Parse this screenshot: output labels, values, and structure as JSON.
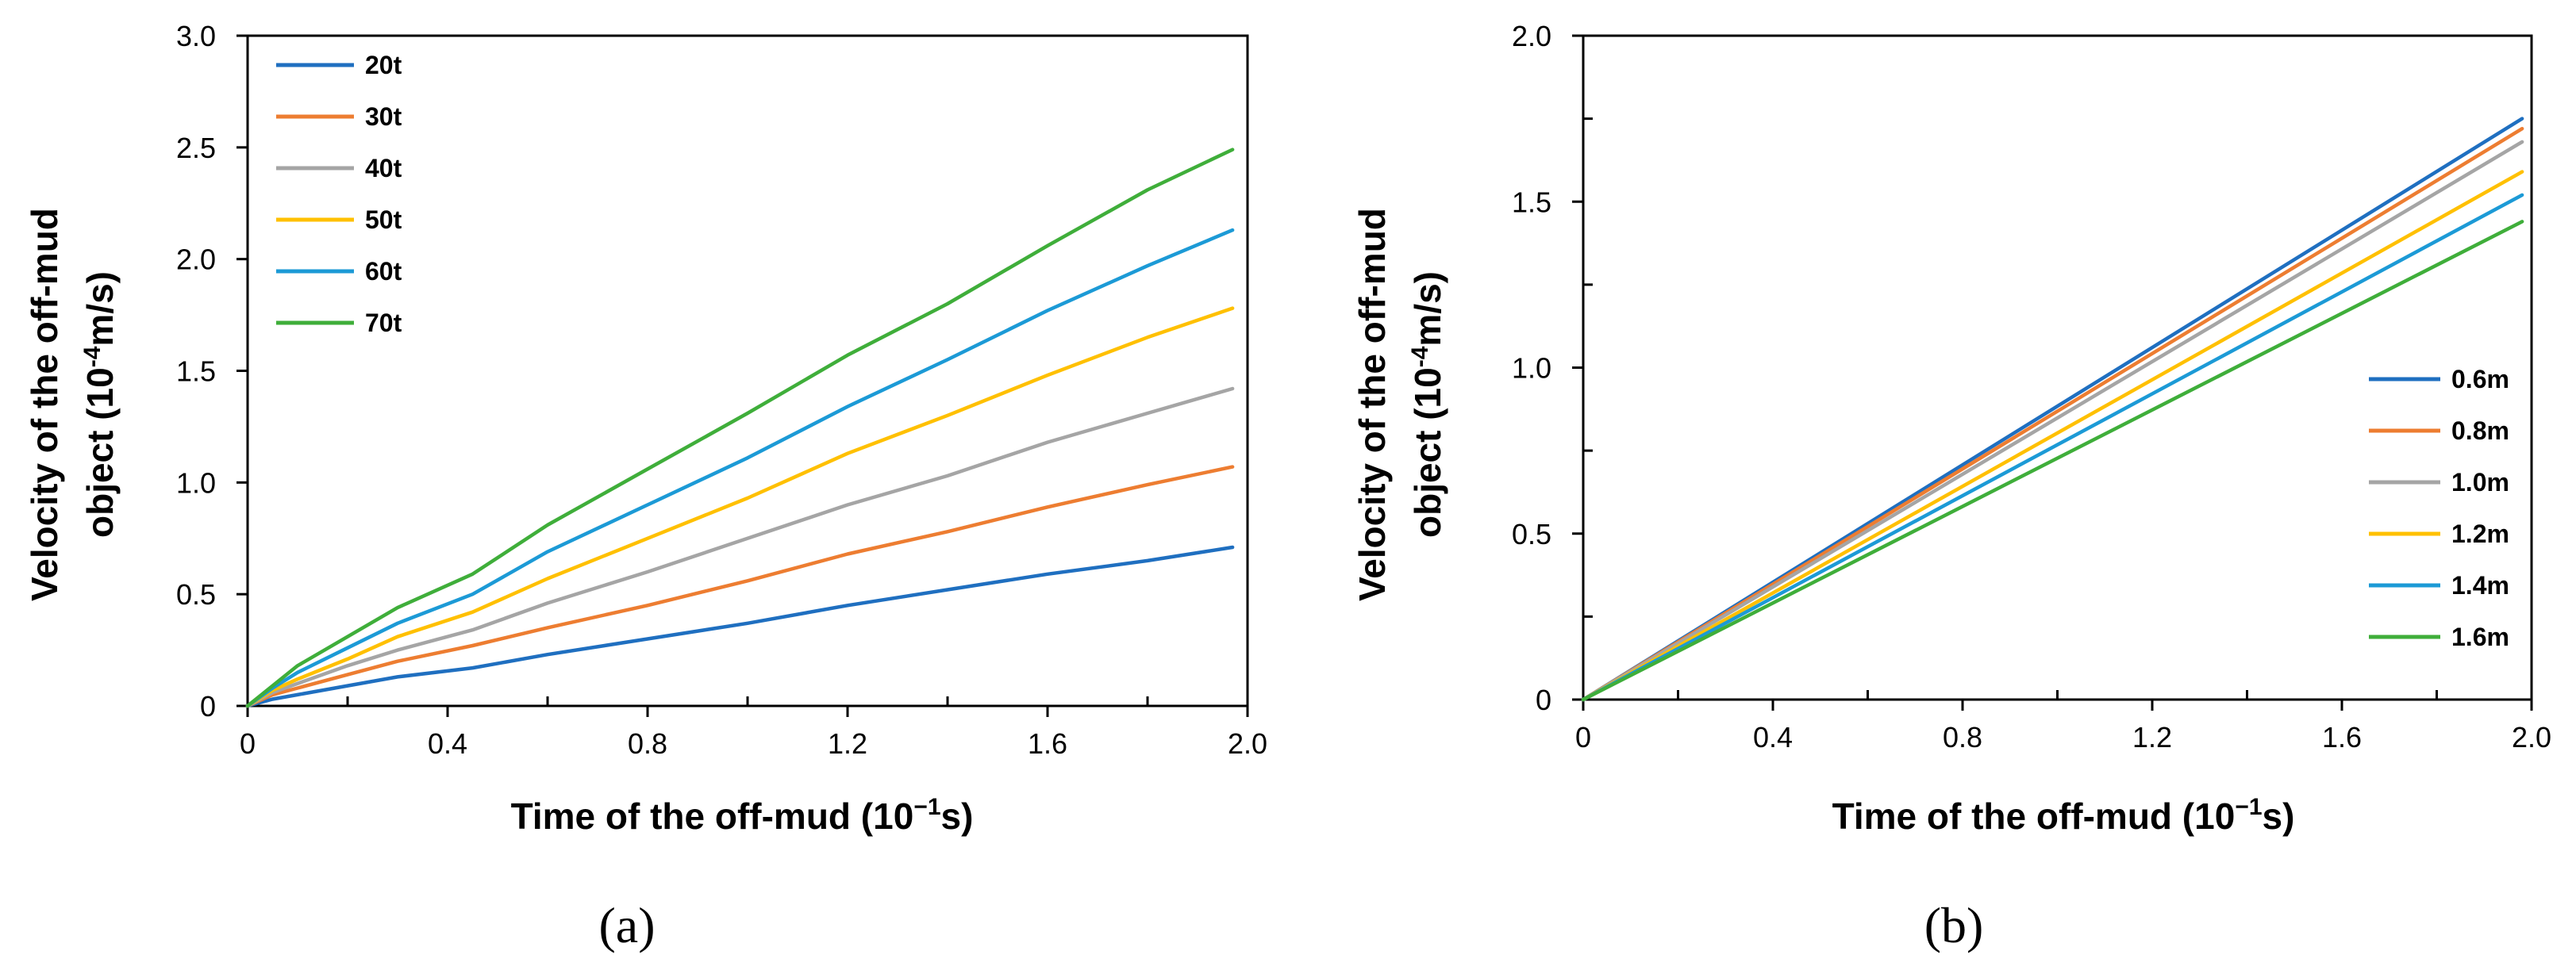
{
  "chart_data": [
    {
      "type": "line",
      "panel_label_parts": [
        "(",
        "a",
        ")"
      ],
      "ylabel_line1": "Velocity of the off-mud",
      "ylabel_line2_prefix": "object  (10",
      "ylabel_line2_sup": "-4",
      "ylabel_line2_suffix": "m/s)",
      "xlabel_prefix": "Time of  the off-mud (10",
      "xlabel_sup": "−1",
      "xlabel_suffix": "s)",
      "xlim": [
        0,
        2.0
      ],
      "ylim": [
        0,
        3.0
      ],
      "xticks": [
        "0",
        "0.4",
        "0.8",
        "1.2",
        "1.6",
        "2.0"
      ],
      "xtick_values": [
        0,
        0.4,
        0.8,
        1.2,
        1.6,
        2.0
      ],
      "xminor": [
        0.2,
        0.6,
        1.0,
        1.4,
        1.8
      ],
      "yticks": [
        "0",
        "0.5",
        "1.0",
        "1.5",
        "2.0",
        "2.5",
        "3.0"
      ],
      "ytick_values": [
        0,
        0.5,
        1.0,
        1.5,
        2.0,
        2.5,
        3.0
      ],
      "legend_position": "top-left",
      "series": [
        {
          "name": "20t",
          "color": "#1f6fc0",
          "x": [
            0,
            0.05,
            0.1,
            0.2,
            0.3,
            0.45,
            0.6,
            0.8,
            1.0,
            1.2,
            1.4,
            1.6,
            1.8,
            1.97
          ],
          "y": [
            0,
            0.03,
            0.05,
            0.09,
            0.13,
            0.17,
            0.23,
            0.3,
            0.37,
            0.45,
            0.52,
            0.59,
            0.65,
            0.71
          ]
        },
        {
          "name": "30t",
          "color": "#ed7d31",
          "x": [
            0,
            0.05,
            0.1,
            0.2,
            0.3,
            0.45,
            0.6,
            0.8,
            1.0,
            1.2,
            1.4,
            1.6,
            1.8,
            1.97
          ],
          "y": [
            0,
            0.05,
            0.08,
            0.14,
            0.2,
            0.27,
            0.35,
            0.45,
            0.56,
            0.68,
            0.78,
            0.89,
            0.99,
            1.07
          ]
        },
        {
          "name": "40t",
          "color": "#a5a5a5",
          "x": [
            0,
            0.05,
            0.1,
            0.2,
            0.3,
            0.45,
            0.6,
            0.8,
            1.0,
            1.2,
            1.4,
            1.6,
            1.8,
            1.97
          ],
          "y": [
            0,
            0.06,
            0.1,
            0.18,
            0.25,
            0.34,
            0.46,
            0.6,
            0.75,
            0.9,
            1.03,
            1.18,
            1.31,
            1.42
          ]
        },
        {
          "name": "50t",
          "color": "#ffc000",
          "x": [
            0,
            0.05,
            0.1,
            0.2,
            0.3,
            0.45,
            0.6,
            0.8,
            1.0,
            1.2,
            1.4,
            1.6,
            1.8,
            1.97
          ],
          "y": [
            0,
            0.07,
            0.12,
            0.21,
            0.31,
            0.42,
            0.57,
            0.75,
            0.93,
            1.13,
            1.3,
            1.48,
            1.65,
            1.78
          ]
        },
        {
          "name": "60t",
          "color": "#1c9ad6",
          "x": [
            0,
            0.05,
            0.1,
            0.2,
            0.3,
            0.45,
            0.6,
            0.8,
            1.0,
            1.2,
            1.4,
            1.6,
            1.8,
            1.97
          ],
          "y": [
            0,
            0.08,
            0.15,
            0.26,
            0.37,
            0.5,
            0.69,
            0.9,
            1.11,
            1.34,
            1.55,
            1.77,
            1.97,
            2.13
          ]
        },
        {
          "name": "70t",
          "color": "#3fae3a",
          "x": [
            0,
            0.05,
            0.1,
            0.2,
            0.3,
            0.45,
            0.6,
            0.8,
            1.0,
            1.2,
            1.4,
            1.6,
            1.8,
            1.97
          ],
          "y": [
            0,
            0.09,
            0.18,
            0.31,
            0.44,
            0.59,
            0.81,
            1.06,
            1.31,
            1.57,
            1.8,
            2.06,
            2.31,
            2.49
          ]
        }
      ]
    },
    {
      "type": "line",
      "panel_label_parts": [
        "(",
        "b",
        ")"
      ],
      "ylabel_line1": "Velocity of the off-mud",
      "ylabel_line2_prefix": "object  (10",
      "ylabel_line2_sup": "-4",
      "ylabel_line2_suffix": "m/s)",
      "xlabel_prefix": "Time of  the off-mud (10",
      "xlabel_sup": "−1",
      "xlabel_suffix": "s)",
      "xlim": [
        0,
        2.0
      ],
      "ylim": [
        0,
        2.0
      ],
      "xticks": [
        "0",
        "0.4",
        "0.8",
        "1.2",
        "1.6",
        "2.0"
      ],
      "xtick_values": [
        0,
        0.4,
        0.8,
        1.2,
        1.6,
        2.0
      ],
      "xminor": [
        0.2,
        0.6,
        1.0,
        1.4,
        1.8
      ],
      "yticks": [
        "0",
        "0.5",
        "1.0",
        "1.5",
        "2.0"
      ],
      "ytick_values": [
        0,
        0.5,
        1.0,
        1.5,
        2.0
      ],
      "yminor": [
        0.25,
        0.75,
        1.25,
        1.75
      ],
      "legend_position": "bottom-right",
      "series": [
        {
          "name": "0.6m",
          "color": "#1f6fc0",
          "x": [
            0,
            1.98
          ],
          "y": [
            0,
            1.75
          ]
        },
        {
          "name": "0.8m",
          "color": "#ed7d31",
          "x": [
            0,
            1.98
          ],
          "y": [
            0,
            1.72
          ]
        },
        {
          "name": "1.0m",
          "color": "#a5a5a5",
          "x": [
            0,
            1.98
          ],
          "y": [
            0,
            1.68
          ]
        },
        {
          "name": "1.2m",
          "color": "#ffc000",
          "x": [
            0,
            1.98
          ],
          "y": [
            0,
            1.59
          ]
        },
        {
          "name": "1.4m",
          "color": "#1c9ad6",
          "x": [
            0,
            1.98
          ],
          "y": [
            0,
            1.52
          ]
        },
        {
          "name": "1.6m",
          "color": "#3fae3a",
          "x": [
            0,
            1.98
          ],
          "y": [
            0,
            1.44
          ]
        }
      ]
    }
  ]
}
